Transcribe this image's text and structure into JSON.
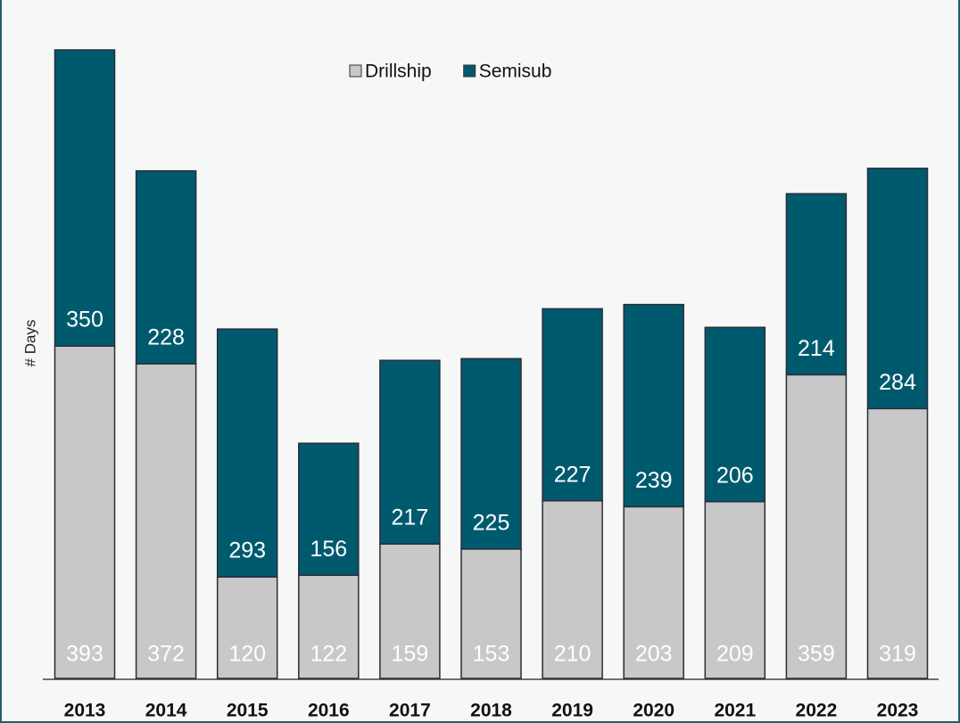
{
  "chart_data": {
    "type": "bar",
    "stacked": true,
    "y_label": "# Days",
    "categories": [
      "2013",
      "2014",
      "2015",
      "2016",
      "2017",
      "2018",
      "2019",
      "2020",
      "2021",
      "2022",
      "2023"
    ],
    "series": [
      {
        "name": "Drillship",
        "color": "#c8c8c8",
        "values": [
          393,
          372,
          120,
          122,
          159,
          153,
          210,
          203,
          209,
          359,
          319
        ]
      },
      {
        "name": "Semisub",
        "color": "#005a6e",
        "values": [
          350,
          228,
          293,
          156,
          217,
          225,
          227,
          239,
          206,
          214,
          284
        ]
      }
    ],
    "legend": "top"
  }
}
